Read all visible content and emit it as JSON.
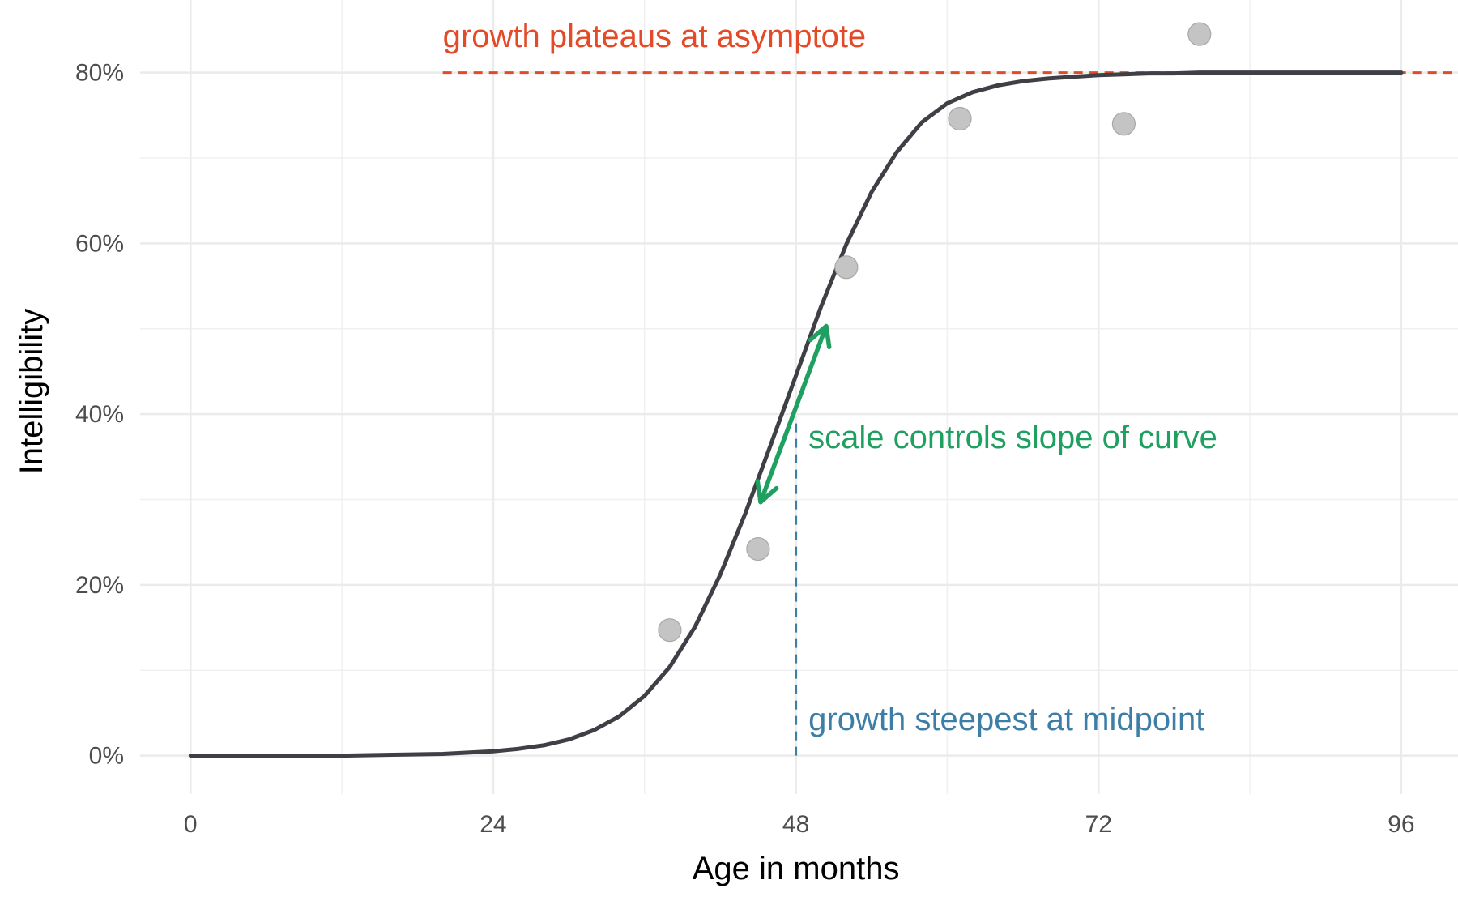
{
  "chart_data": {
    "type": "line",
    "xlabel": "Age in months",
    "ylabel": "Intelligibility",
    "xlim": [
      -4,
      100.5
    ],
    "ylim": [
      -0.045,
      0.885
    ],
    "x_ticks": [
      0,
      24,
      48,
      72,
      96
    ],
    "x_tick_labels": [
      "0",
      "24",
      "48",
      "72",
      "96"
    ],
    "y_ticks": [
      0,
      0.2,
      0.4,
      0.6,
      0.8
    ],
    "y_tick_labels": [
      "0%",
      "20%",
      "40%",
      "60%",
      "80%"
    ],
    "x_minor_ticks": [
      12,
      36,
      60,
      84
    ],
    "y_minor_ticks": [
      0.1,
      0.3,
      0.5,
      0.7
    ],
    "grid": true,
    "series": [
      {
        "kind": "fitted-curve",
        "color": "#3f3f46",
        "x": [
          0,
          4,
          8,
          12,
          16,
          20,
          24,
          26,
          28,
          30,
          32,
          34,
          36,
          38,
          40,
          42,
          44,
          46,
          48,
          50,
          52,
          54,
          56,
          58,
          60,
          62,
          64,
          66,
          68,
          70,
          72,
          74,
          76,
          78,
          80,
          84,
          88,
          92,
          96
        ],
        "y": [
          0.0,
          0.0,
          0.0,
          0.0,
          0.001,
          0.002,
          0.005,
          0.008,
          0.012,
          0.019,
          0.03,
          0.046,
          0.07,
          0.104,
          0.151,
          0.212,
          0.284,
          0.364,
          0.445,
          0.526,
          0.599,
          0.66,
          0.707,
          0.742,
          0.764,
          0.777,
          0.785,
          0.79,
          0.793,
          0.795,
          0.797,
          0.798,
          0.799,
          0.799,
          0.8,
          0.8,
          0.8,
          0.8,
          0.8
        ]
      },
      {
        "kind": "observed-points",
        "color": "#c4c4c4",
        "x": [
          38,
          45,
          52,
          61,
          74,
          80
        ],
        "y": [
          0.147,
          0.242,
          0.572,
          0.746,
          0.74,
          0.845
        ]
      }
    ],
    "annotations": {
      "asymptote": {
        "text": "growth plateaus at asymptote",
        "color": "#e34a27",
        "y": 0.8,
        "x_from": 20,
        "text_x": 20,
        "text_y": 0.83
      },
      "midpoint": {
        "text": "growth steepest at midpoint",
        "color": "#3d7ea6",
        "x": 48,
        "y_from": 0,
        "y_to": 0.39,
        "text_x": 49,
        "text_y": 0.03
      },
      "scale": {
        "text": "scale controls slope of curve",
        "color": "#1fa060",
        "x_from": 45.2,
        "y_from": 0.297,
        "x_to": 50.4,
        "y_to": 0.503,
        "text_x": 49,
        "text_y": 0.36
      }
    }
  }
}
